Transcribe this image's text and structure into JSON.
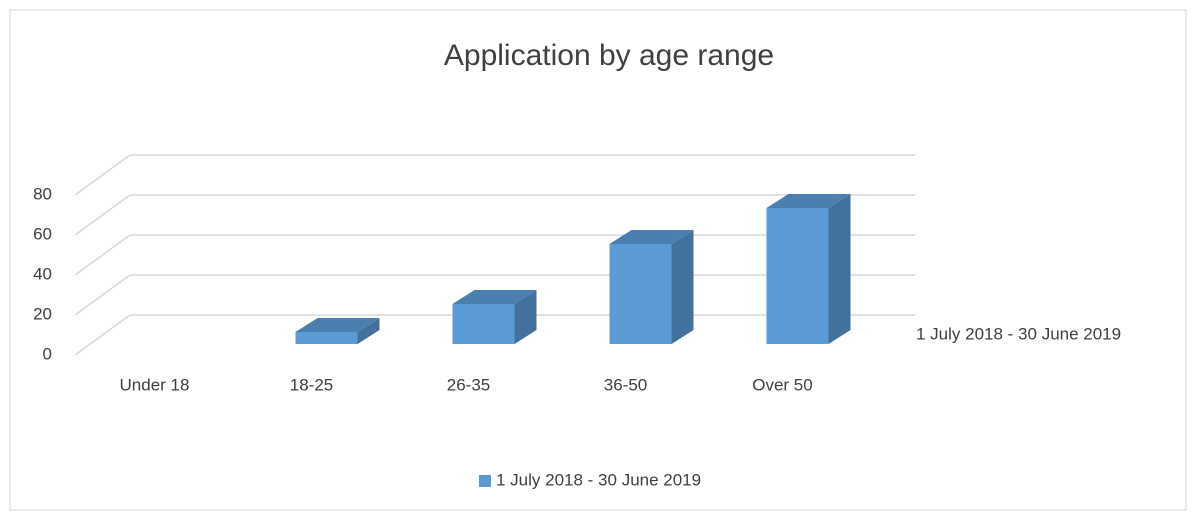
{
  "chart_data": {
    "type": "bar3d",
    "title": "Application by age range",
    "categories": [
      "Under 18",
      "18-25",
      "26-35",
      "36-50",
      "Over 50"
    ],
    "series": [
      {
        "name": "1 July 2018 - 30 June 2019",
        "color": "#5b9bd5",
        "values": [
          0,
          6,
          20,
          50,
          68
        ]
      }
    ],
    "ylim": [
      0,
      80
    ],
    "yticks": [
      0,
      20,
      40,
      60,
      80
    ],
    "grid": true,
    "legend": "bottom"
  }
}
